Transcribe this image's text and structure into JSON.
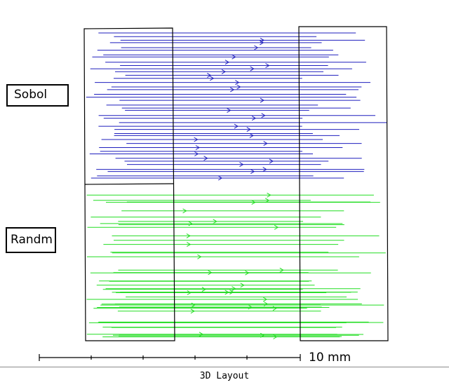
{
  "labels": {
    "sobol": "Sobol",
    "randm": "Randm"
  },
  "scale_bar": {
    "label": "10 mm"
  },
  "footer": {
    "title": "3D Layout"
  },
  "colors": {
    "sobol_rays": "#1e1ebe",
    "random_rays": "#22dd22",
    "outline": "#000000"
  }
}
